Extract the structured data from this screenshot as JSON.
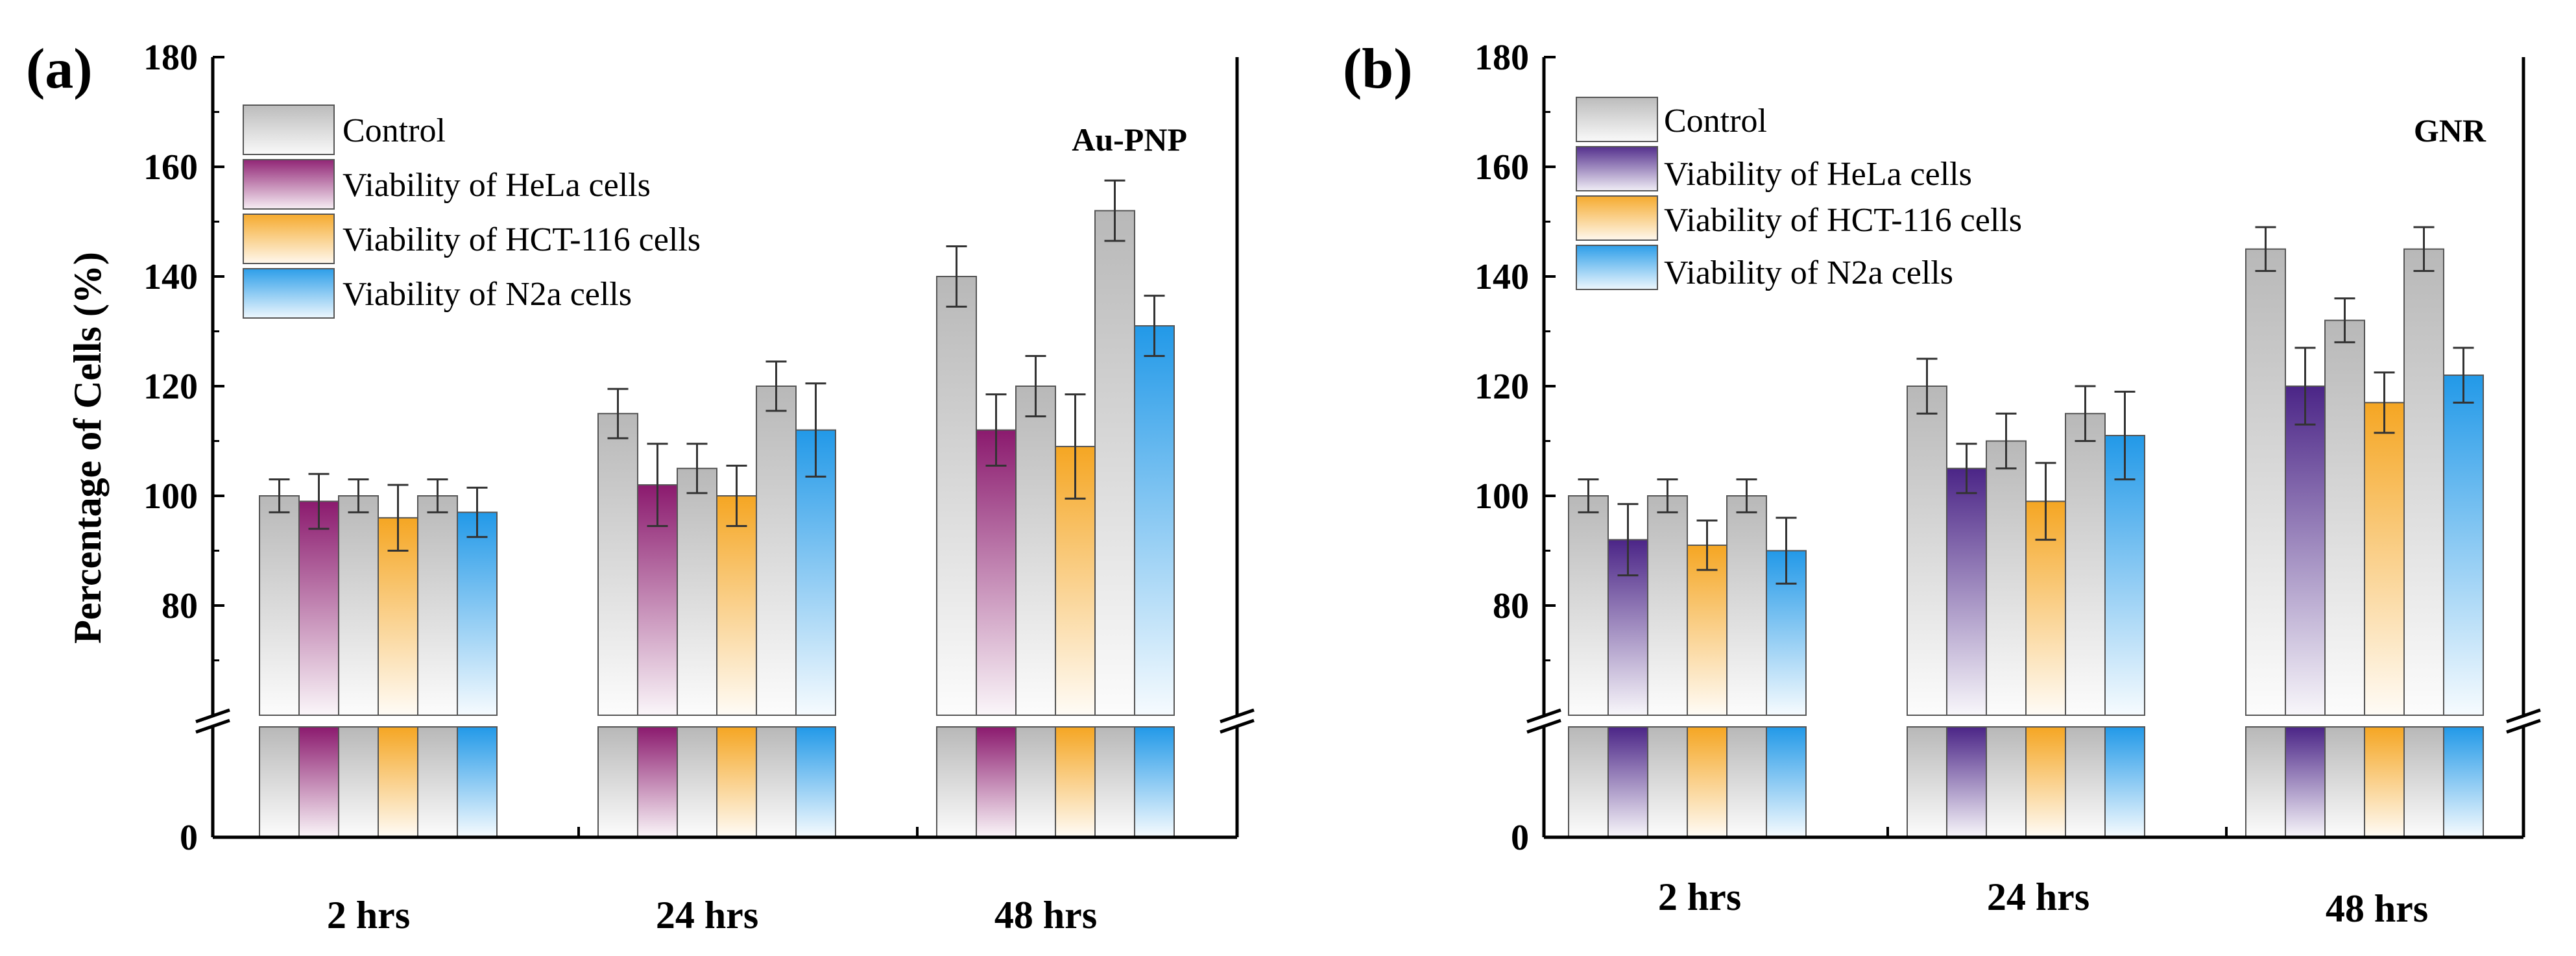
{
  "chart_data": [
    {
      "panel": "(a)",
      "type": "bar",
      "annotation": "Au-PNP",
      "ylabel": "Percentage of Cells (%)",
      "yticks": [
        "180",
        "160",
        "140",
        "120",
        "100",
        "80",
        "0"
      ],
      "ylim": [
        0,
        180
      ],
      "axis_break": [
        0,
        60
      ],
      "categories": [
        "2 hrs",
        "24 hrs",
        "48 hrs"
      ],
      "series": [
        {
          "name": "Control",
          "color": "#b8b8b8",
          "values": [
            100,
            115,
            140
          ],
          "errors": [
            3,
            4.5,
            5.5
          ]
        },
        {
          "name": "Viability of HeLa cells",
          "color": "#8b1a6e",
          "values": [
            99,
            102,
            112
          ],
          "errors": [
            5,
            7.5,
            6.5
          ]
        },
        {
          "name": "Control",
          "color": "#b8b8b8",
          "values": [
            100,
            105,
            120
          ],
          "errors": [
            3,
            4.5,
            5.5
          ]
        },
        {
          "name": "Viability of HCT-116 cells",
          "color": "#f5a623",
          "values": [
            96,
            100,
            109
          ],
          "errors": [
            6,
            5.5,
            9.5
          ]
        },
        {
          "name": "Control",
          "color": "#b8b8b8",
          "values": [
            100,
            120,
            152
          ],
          "errors": [
            3,
            4.5,
            5.5
          ]
        },
        {
          "name": "Viability of N2a cells",
          "color": "#2299e8",
          "values": [
            97,
            112,
            131
          ],
          "errors": [
            4.5,
            8.5,
            5.5
          ]
        }
      ],
      "legend": [
        "Control",
        "Viability of HeLa cells",
        "Viability of HCT-116 cells",
        "Viability of N2a cells"
      ],
      "legend_colors": [
        "#b8b8b8",
        "#8b1a6e",
        "#f5a623",
        "#2299e8"
      ]
    },
    {
      "panel": "(b)",
      "type": "bar",
      "annotation": "GNR",
      "ylabel": "",
      "yticks": [
        "180",
        "160",
        "140",
        "120",
        "100",
        "80",
        "0"
      ],
      "ylim": [
        0,
        180
      ],
      "axis_break": [
        0,
        60
      ],
      "categories": [
        "2 hrs",
        "24 hrs",
        "48 hrs"
      ],
      "series": [
        {
          "name": "Control",
          "color": "#b8b8b8",
          "values": [
            100,
            120,
            145
          ],
          "errors": [
            3,
            5,
            4
          ]
        },
        {
          "name": "Viability of HeLa cells",
          "color": "#4b2587",
          "values": [
            92,
            105,
            120
          ],
          "errors": [
            6.5,
            4.5,
            7
          ]
        },
        {
          "name": "Control",
          "color": "#b8b8b8",
          "values": [
            100,
            110,
            132
          ],
          "errors": [
            3,
            5,
            4
          ]
        },
        {
          "name": "Viability of HCT-116 cells",
          "color": "#f5a623",
          "values": [
            91,
            99,
            117
          ],
          "errors": [
            4.5,
            7,
            5.5
          ]
        },
        {
          "name": "Control",
          "color": "#b8b8b8",
          "values": [
            100,
            115,
            145
          ],
          "errors": [
            3,
            5,
            4
          ]
        },
        {
          "name": "Viability of N2a cells",
          "color": "#2299e8",
          "values": [
            90,
            111,
            122
          ],
          "errors": [
            6,
            8,
            5
          ]
        }
      ],
      "legend": [
        "Control",
        "Viability of HeLa cells",
        "Viability of HCT-116 cells",
        "Viability of N2a cells"
      ],
      "legend_colors": [
        "#b8b8b8",
        "#4b2587",
        "#f5a623",
        "#2299e8"
      ]
    }
  ]
}
